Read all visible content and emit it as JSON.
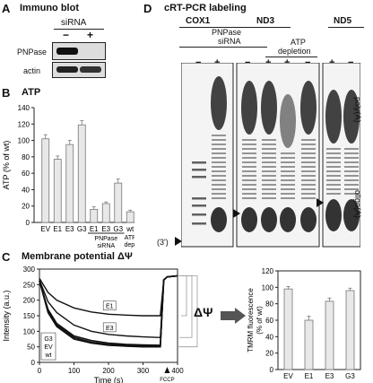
{
  "panelA": {
    "letter": "A",
    "title": "Immuno blot",
    "header": "siRNA",
    "minus": "−",
    "plus": "+",
    "rows": [
      "PNPase",
      "actin"
    ]
  },
  "panelB": {
    "letter": "B",
    "title": "ATP",
    "chart_data": {
      "type": "bar",
      "ylabel": "ATP (% of wt)",
      "ylim": [
        0,
        140
      ],
      "yticks": [
        0,
        20,
        40,
        60,
        80,
        100,
        120,
        140
      ],
      "categories": [
        "EV",
        "E1",
        "E3",
        "G3",
        "E1",
        "E3",
        "G3",
        "wt"
      ],
      "values": [
        102,
        77,
        95,
        119,
        16,
        23,
        48,
        13
      ],
      "errors": [
        5,
        4,
        5,
        5,
        3,
        2,
        5,
        2
      ],
      "group_labels": [
        "PNPase siRNA",
        "ATP dep."
      ]
    }
  },
  "panelC": {
    "letter": "C",
    "title": "Membrane potential ΔΨ",
    "chart_data": {
      "type": "line",
      "xlabel": "Time (s)",
      "ylabel": "Intensity (a.u.)",
      "xlim": [
        0,
        400
      ],
      "ylim": [
        0,
        300
      ],
      "xticks": [
        0,
        100,
        200,
        300,
        400
      ],
      "yticks": [
        0,
        50,
        100,
        150,
        200,
        250,
        300
      ],
      "series": [
        {
          "name": "E1",
          "x": [
            0,
            25,
            50,
            100,
            150,
            200,
            250,
            300,
            350,
            360,
            370,
            400
          ],
          "y": [
            270,
            225,
            200,
            175,
            162,
            155,
            152,
            150,
            150,
            265,
            275,
            278
          ]
        },
        {
          "name": "E3",
          "x": [
            0,
            25,
            50,
            100,
            150,
            200,
            250,
            300,
            350,
            360,
            370,
            400
          ],
          "y": [
            265,
            195,
            160,
            120,
            100,
            90,
            85,
            82,
            80,
            265,
            275,
            278
          ]
        },
        {
          "name": "G3",
          "x": [
            0,
            25,
            50,
            100,
            150,
            200,
            250,
            300,
            350,
            360,
            370,
            400
          ],
          "y": [
            262,
            170,
            125,
            85,
            70,
            62,
            58,
            56,
            55,
            265,
            275,
            278
          ]
        },
        {
          "name": "EV",
          "x": [
            0,
            25,
            50,
            100,
            150,
            200,
            250,
            300,
            350,
            360,
            370,
            400
          ],
          "y": [
            262,
            165,
            120,
            80,
            65,
            58,
            55,
            53,
            52,
            265,
            275,
            278
          ]
        },
        {
          "name": "wt",
          "x": [
            0,
            25,
            50,
            100,
            150,
            200,
            250,
            300,
            350,
            360,
            370,
            400
          ],
          "y": [
            262,
            160,
            115,
            75,
            62,
            55,
            52,
            50,
            50,
            265,
            275,
            278
          ]
        }
      ],
      "annotation": "FCCP"
    },
    "delta_psi": "ΔΨ",
    "bar_chart": {
      "type": "bar",
      "ylabel": "TMRM fluorescence (% of wt)",
      "ylim": [
        0,
        120
      ],
      "yticks": [
        0,
        20,
        40,
        60,
        80,
        100,
        120
      ],
      "categories": [
        "EV",
        "E1",
        "E3",
        "G3"
      ],
      "values": [
        98,
        60,
        83,
        96
      ],
      "errors": [
        3,
        5,
        4,
        3
      ]
    }
  },
  "panelD": {
    "letter": "D",
    "title": "cRT-PCR labeling",
    "genes": [
      "COX1",
      "ND3",
      "ND5"
    ],
    "sublabel_siRNA": "PNPase siRNA",
    "sublabel_atp": "ATP depletion",
    "lane_signs": [
      "−",
      "+",
      "−",
      "+",
      "+",
      "−",
      "+",
      "−"
    ],
    "polyA": "poly(A)",
    "oligoA": "oligo(A)",
    "three_prime": "(3')"
  }
}
